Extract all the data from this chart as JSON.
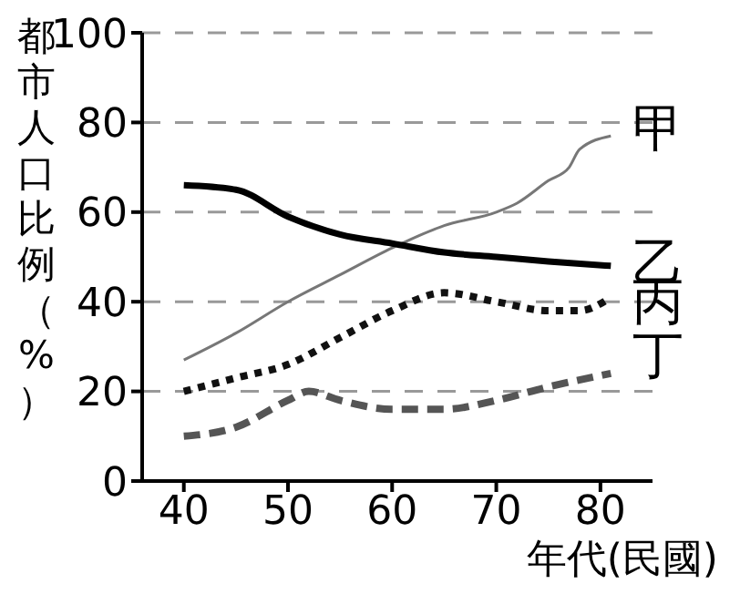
{
  "chart_data": {
    "type": "line",
    "ylabel": "都市人口比例（%）",
    "xlabel": "年代(民國)",
    "xlim": [
      36,
      85
    ],
    "xticks": [
      40,
      50,
      60,
      70,
      80
    ],
    "ylim": [
      0,
      100
    ],
    "yticks": [
      0,
      20,
      40,
      60,
      80,
      100
    ],
    "grid": "y",
    "legend": false,
    "marker": "none",
    "series": [
      {
        "name": "甲",
        "color": "#777777",
        "line_style": "solid",
        "x": [
          40,
          45,
          50,
          55,
          60,
          65,
          70,
          72,
          75,
          77,
          78,
          81
        ],
        "values": [
          27,
          33,
          40,
          46,
          52,
          57,
          60,
          62,
          67,
          70,
          74,
          77
        ]
      },
      {
        "name": "乙",
        "color": "#000000",
        "line_style": "solid",
        "x": [
          40,
          45,
          50,
          55,
          60,
          65,
          70,
          75,
          81
        ],
        "values": [
          66,
          65,
          59,
          55,
          53,
          51,
          50,
          49,
          48
        ]
      },
      {
        "name": "丙",
        "color": "#111111",
        "line_style": "dotted",
        "x": [
          40,
          45,
          50,
          55,
          60,
          65,
          70,
          75,
          78,
          81
        ],
        "values": [
          20,
          23,
          26,
          32,
          38,
          42,
          40,
          38,
          38,
          41
        ]
      },
      {
        "name": "丁",
        "color": "#555555",
        "line_style": "dashed",
        "x": [
          40,
          45,
          50,
          52,
          55,
          60,
          65,
          70,
          75,
          81
        ],
        "values": [
          10,
          12,
          18,
          20,
          18,
          16,
          16,
          18,
          21,
          24
        ]
      }
    ]
  }
}
